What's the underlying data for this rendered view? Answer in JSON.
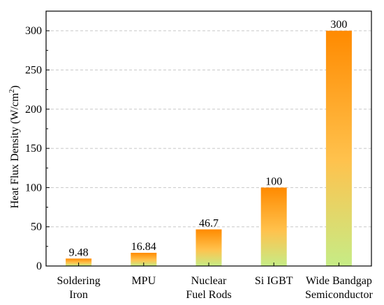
{
  "chart_data": {
    "type": "bar",
    "categories": [
      [
        "Soldering",
        "Iron"
      ],
      [
        "MPU"
      ],
      [
        "Nuclear",
        "Fuel Rods"
      ],
      [
        "Si IGBT"
      ],
      [
        "Wide Bandgap",
        "Semiconductor"
      ]
    ],
    "values": [
      9.48,
      16.84,
      46.7,
      100,
      300
    ],
    "data_labels": [
      "9.48",
      "16.84",
      "46.7",
      "100",
      "300"
    ],
    "ylabel": "Heat Flux Density (W/cm",
    "ylabel_superscript": "2",
    "ylabel_suffix": ")",
    "xlabel": "",
    "ylim": [
      0,
      325
    ],
    "yticks": [
      0,
      50,
      100,
      150,
      200,
      250,
      300
    ],
    "grid": true,
    "legend": "none",
    "colors": {
      "bar_top": "#ff8a00",
      "bar_mid": "#ffc24d",
      "bar_bottom": "#c6ec86",
      "grid": "#c8c8c8",
      "axis": "#000000"
    }
  }
}
